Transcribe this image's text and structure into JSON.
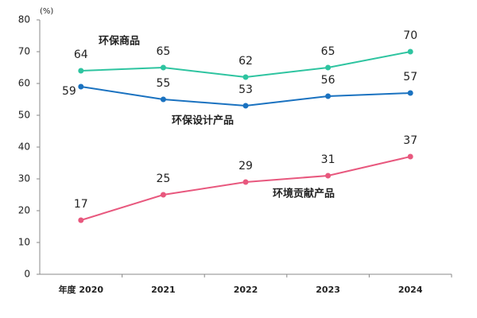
{
  "chart_data": {
    "type": "line",
    "y_unit": "(%)",
    "categories": [
      "年度 2020",
      "2021",
      "2022",
      "2023",
      "2024"
    ],
    "series": [
      {
        "name": "环保商品",
        "color": "#2ec4a0",
        "values": [
          64,
          65,
          62,
          65,
          70
        ]
      },
      {
        "name": "环保设计产品",
        "color": "#1a72c0",
        "values": [
          59,
          55,
          53,
          56,
          57
        ]
      },
      {
        "name": "环境贡献产品",
        "color": "#e8587e",
        "values": [
          17,
          25,
          29,
          31,
          37
        ]
      }
    ],
    "ylim": [
      0,
      80
    ],
    "yticks": [
      0,
      10,
      20,
      30,
      40,
      50,
      60,
      70,
      80
    ],
    "grid": false
  }
}
